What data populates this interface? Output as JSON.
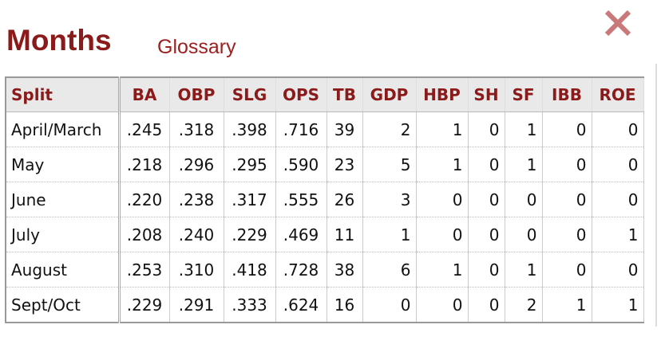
{
  "header": {
    "title": "Months",
    "link": "Glossary"
  },
  "table": {
    "columns": [
      "Split",
      "BA",
      "OBP",
      "SLG",
      "OPS",
      "TB",
      "GDP",
      "HBP",
      "SH",
      "SF",
      "IBB",
      "ROE"
    ],
    "rows": [
      [
        "April/March",
        ".245",
        ".318",
        ".398",
        ".716",
        "39",
        "2",
        "1",
        "0",
        "1",
        "0",
        "0"
      ],
      [
        "May",
        ".218",
        ".296",
        ".295",
        ".590",
        "23",
        "5",
        "1",
        "0",
        "1",
        "0",
        "0"
      ],
      [
        "June",
        ".220",
        ".238",
        ".317",
        ".555",
        "26",
        "3",
        "0",
        "0",
        "0",
        "0",
        "0"
      ],
      [
        "July",
        ".208",
        ".240",
        ".229",
        ".469",
        "11",
        "1",
        "0",
        "0",
        "0",
        "0",
        "1"
      ],
      [
        "August",
        ".253",
        ".310",
        ".418",
        ".728",
        "38",
        "6",
        "1",
        "0",
        "1",
        "0",
        "0"
      ],
      [
        "Sept/Oct",
        ".229",
        ".291",
        ".333",
        ".624",
        "16",
        "0",
        "0",
        "0",
        "2",
        "1",
        "1"
      ]
    ]
  }
}
